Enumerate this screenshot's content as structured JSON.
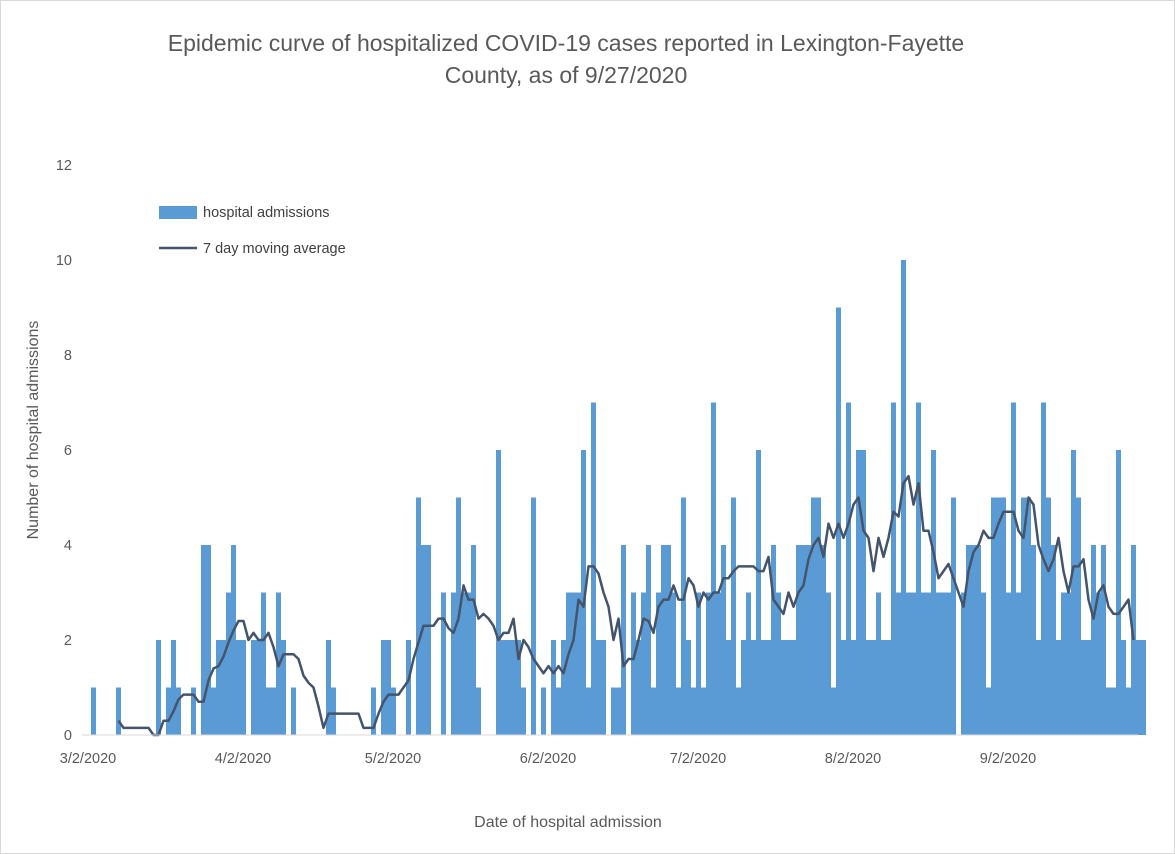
{
  "chart_data": {
    "type": "bar",
    "title_line1": "Epidemic curve of hospitalized COVID-19 cases reported in Lexington-Fayette",
    "title_line2": "County, as of 9/27/2020",
    "xlabel": "Date of hospital admission",
    "ylabel": "Number of hospital admissions",
    "ylim": [
      0,
      12
    ],
    "yticks": [
      0,
      2,
      4,
      6,
      8,
      10,
      12
    ],
    "xticks": [
      {
        "label": "3/2/2020",
        "day": 0
      },
      {
        "label": "4/2/2020",
        "day": 31
      },
      {
        "label": "5/2/2020",
        "day": 61
      },
      {
        "label": "6/2/2020",
        "day": 92
      },
      {
        "label": "7/2/2020",
        "day": 122
      },
      {
        "label": "8/2/2020",
        "day": 153
      },
      {
        "label": "9/2/2020",
        "day": 184
      }
    ],
    "start_date": "3/2/2020",
    "end_date": "9/27/2020",
    "legend_position": "top-left",
    "series": [
      {
        "name": "hospital admissions",
        "kind": "bar",
        "color": "#5b9bd5",
        "values": [
          0,
          1,
          0,
          0,
          0,
          0,
          1,
          0,
          0,
          0,
          0,
          0,
          0,
          0,
          2,
          0,
          1,
          2,
          1,
          0,
          0,
          1,
          0,
          4,
          4,
          1,
          2,
          2,
          3,
          4,
          2,
          2,
          0,
          2,
          2,
          3,
          1,
          1,
          3,
          2,
          0,
          1,
          0,
          0,
          0,
          0,
          0,
          0,
          2,
          1,
          0,
          0,
          0,
          0,
          0,
          0,
          0,
          1,
          0,
          2,
          2,
          1,
          0,
          0,
          2,
          0,
          5,
          4,
          4,
          0,
          0,
          3,
          0,
          3,
          5,
          3,
          3,
          4,
          1,
          0,
          0,
          0,
          6,
          2,
          2,
          2,
          2,
          1,
          0,
          5,
          0,
          1,
          0,
          2,
          1,
          2,
          3,
          3,
          3,
          6,
          1,
          7,
          2,
          2,
          0,
          1,
          1,
          4,
          0,
          3,
          2,
          3,
          4,
          1,
          3,
          4,
          4,
          3,
          1,
          5,
          2,
          1,
          3,
          1,
          3,
          7,
          3,
          4,
          2,
          5,
          1,
          2,
          3,
          2,
          6,
          2,
          2,
          4,
          3,
          2,
          2,
          2,
          4,
          4,
          4,
          5,
          5,
          4,
          3,
          1,
          9,
          2,
          7,
          2,
          6,
          6,
          2,
          2,
          3,
          2,
          2,
          7,
          3,
          10,
          3,
          3,
          7,
          3,
          3,
          6,
          3,
          3,
          3,
          5,
          0,
          3,
          4,
          4,
          4,
          3,
          1,
          5,
          5,
          5,
          3,
          7,
          3,
          5,
          5,
          4,
          2,
          7,
          5,
          4,
          2,
          3,
          3,
          6,
          5,
          2,
          2,
          4,
          3,
          4,
          1,
          1,
          6,
          2,
          1,
          4,
          2,
          2
        ]
      },
      {
        "name": "7 day moving average",
        "kind": "line",
        "color": "#44546a",
        "start_day": 6,
        "values": [
          0.3,
          0.15,
          0.15,
          0.15,
          0.15,
          0.15,
          0.15,
          0.0,
          0.0,
          0.3,
          0.3,
          0.5,
          0.75,
          0.85,
          0.85,
          0.85,
          0.7,
          0.7,
          1.15,
          1.4,
          1.45,
          1.65,
          1.95,
          2.2,
          2.4,
          2.4,
          2.0,
          2.15,
          2.0,
          2.0,
          2.15,
          1.85,
          1.45,
          1.7,
          1.7,
          1.7,
          1.6,
          1.25,
          1.1,
          1.0,
          0.6,
          0.15,
          0.45,
          0.45,
          0.45,
          0.45,
          0.45,
          0.45,
          0.45,
          0.15,
          0.15,
          0.15,
          0.45,
          0.7,
          0.85,
          0.85,
          0.85,
          1.0,
          1.15,
          1.6,
          1.95,
          2.3,
          2.3,
          2.3,
          2.45,
          2.45,
          2.25,
          2.15,
          2.45,
          3.15,
          2.85,
          2.85,
          2.45,
          2.55,
          2.45,
          2.3,
          2.0,
          2.15,
          2.15,
          2.45,
          1.6,
          2.0,
          1.85,
          1.6,
          1.45,
          1.3,
          1.45,
          1.3,
          1.45,
          1.3,
          1.7,
          2.0,
          2.85,
          2.7,
          3.55,
          3.55,
          3.4,
          3.0,
          2.7,
          2.0,
          2.45,
          1.45,
          1.6,
          1.6,
          2.0,
          2.45,
          2.4,
          2.15,
          2.7,
          2.85,
          2.85,
          3.15,
          2.85,
          2.85,
          3.3,
          3.15,
          2.7,
          3.0,
          2.85,
          3.0,
          3.0,
          3.3,
          3.3,
          3.45,
          3.55,
          3.55,
          3.55,
          3.55,
          3.45,
          3.45,
          3.75,
          2.85,
          2.7,
          2.55,
          3.0,
          2.7,
          3.0,
          3.15,
          3.7,
          4.0,
          4.15,
          3.75,
          4.45,
          4.15,
          4.45,
          4.15,
          4.45,
          4.85,
          5.0,
          4.3,
          4.15,
          3.45,
          4.15,
          3.75,
          4.15,
          4.7,
          4.6,
          5.3,
          5.45,
          4.85,
          5.3,
          4.3,
          4.3,
          3.85,
          3.3,
          3.45,
          3.6,
          3.3,
          3.0,
          2.7,
          3.45,
          3.85,
          4.0,
          4.3,
          4.15,
          4.15,
          4.45,
          4.7,
          4.7,
          4.7,
          4.3,
          4.15,
          5.0,
          4.85,
          4.0,
          3.7,
          3.45,
          3.7,
          4.15,
          3.45,
          3.0,
          3.55,
          3.55,
          3.7,
          2.85,
          2.45,
          3.0,
          3.15,
          2.7,
          2.55,
          2.55,
          2.7,
          2.85,
          2.0
        ]
      }
    ]
  }
}
